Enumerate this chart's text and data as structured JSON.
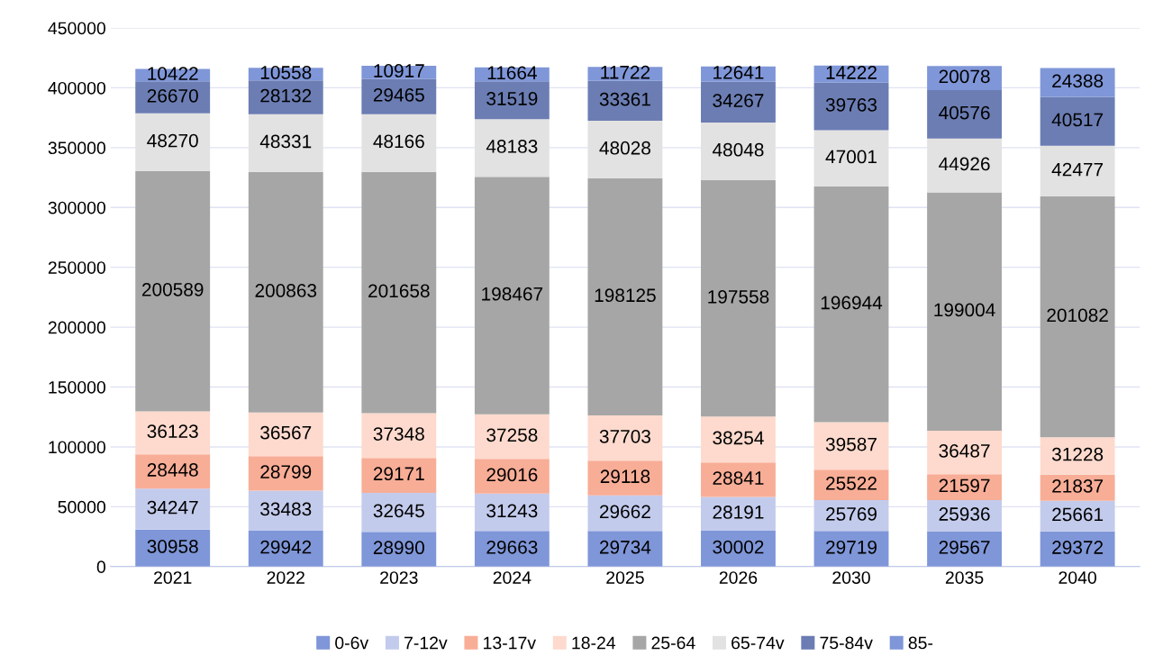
{
  "chart_data": {
    "type": "bar",
    "stacked": true,
    "categories": [
      "2021",
      "2022",
      "2023",
      "2024",
      "2025",
      "2026",
      "2030",
      "2035",
      "2040"
    ],
    "series": [
      {
        "name": "0-6v",
        "color": "#7f96d8",
        "values": [
          30958,
          29942,
          28990,
          29663,
          29734,
          30002,
          29719,
          29567,
          29372
        ]
      },
      {
        "name": "7-12v",
        "color": "#c3cbec",
        "values": [
          34247,
          33483,
          32645,
          31243,
          29662,
          28191,
          25769,
          25936,
          25661
        ]
      },
      {
        "name": "13-17v",
        "color": "#f8ad96",
        "values": [
          28448,
          28799,
          29171,
          29016,
          29118,
          28841,
          25522,
          21597,
          21837
        ]
      },
      {
        "name": "18-24",
        "color": "#fddacd",
        "values": [
          36123,
          36567,
          37348,
          37258,
          37703,
          38254,
          39587,
          36487,
          31228
        ]
      },
      {
        "name": "25-64",
        "color": "#a6a6a6",
        "values": [
          200589,
          200863,
          201658,
          198467,
          198125,
          197558,
          196944,
          199004,
          201082
        ]
      },
      {
        "name": "65-74v",
        "color": "#e2e2e2",
        "values": [
          48270,
          48331,
          48166,
          48183,
          48028,
          48048,
          47001,
          44926,
          42477
        ]
      },
      {
        "name": "75-84v",
        "color": "#6b7db3",
        "values": [
          26670,
          28132,
          29465,
          31519,
          33361,
          34267,
          39763,
          40576,
          40517
        ]
      },
      {
        "name": "85-",
        "color": "#7f96d8",
        "values": [
          10422,
          10558,
          10917,
          11664,
          11722,
          12641,
          14222,
          20078,
          24388
        ]
      }
    ],
    "ylim": [
      0,
      450000
    ],
    "yticks": [
      0,
      50000,
      100000,
      150000,
      200000,
      250000,
      300000,
      350000,
      400000,
      450000
    ],
    "grid": "y",
    "legend": "bottom",
    "data_labels": true
  }
}
